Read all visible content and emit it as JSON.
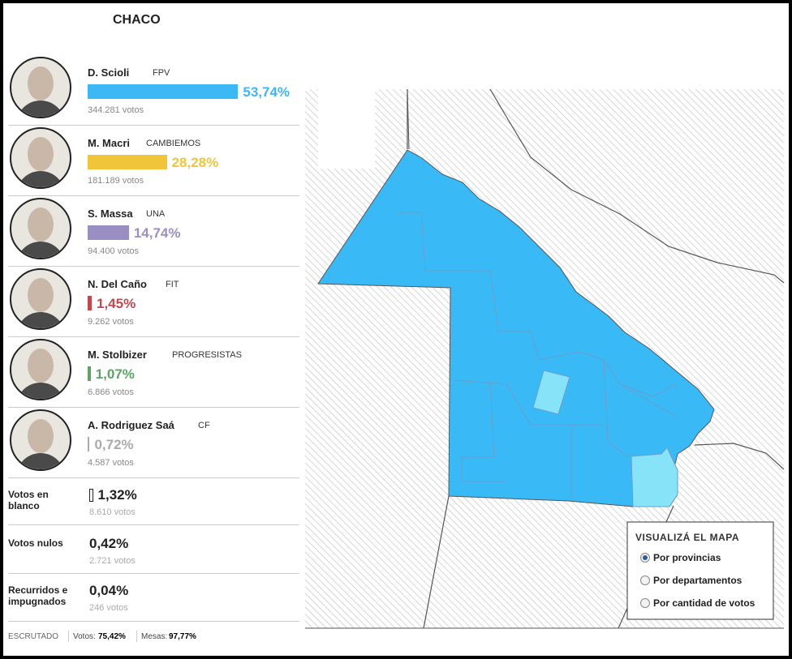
{
  "header": {
    "title": "CHACO"
  },
  "candidates": [
    {
      "name": "D. Scioli",
      "party": "FPV",
      "percent": 53.74,
      "percent_label": "53,74%",
      "votes": "344.281 votos",
      "color": "#3cb8f6"
    },
    {
      "name": "M. Macri",
      "party": "CAMBIEMOS",
      "percent": 28.28,
      "percent_label": "28,28%",
      "votes": "181.189 votos",
      "color": "#f0c53a"
    },
    {
      "name": "S. Massa",
      "party": "UNA",
      "percent": 14.74,
      "percent_label": "14,74%",
      "votes": "94.400 votos",
      "color": "#9a8fc2"
    },
    {
      "name": "N. Del Caño",
      "party": "FIT",
      "percent": 1.45,
      "percent_label": "1,45%",
      "votes": "9.262 votos",
      "color": "#c4474c"
    },
    {
      "name": "M. Stolbizer",
      "party": "PROGRESISTAS",
      "percent": 1.07,
      "percent_label": "1,07%",
      "votes": "6.866 votos",
      "color": "#5aa465"
    },
    {
      "name": "A. Rodriguez Saá",
      "party": "CF",
      "percent": 0.72,
      "percent_label": "0,72%",
      "votes": "4.587 votos",
      "color": "#aaaaaa"
    }
  ],
  "other_votes": [
    {
      "name": "Votos en blanco",
      "percent": 1.32,
      "percent_label": "1,32%",
      "votes": "8.610 votos",
      "color": "#ffffff"
    },
    {
      "name": "Votos nulos",
      "percent": 0.42,
      "percent_label": "0,42%",
      "votes": "2.721 votos"
    },
    {
      "name": "Recurridos e impugnados",
      "percent": 0.04,
      "percent_label": "0,04%",
      "votes": "246 votos"
    }
  ],
  "footer": {
    "label": "ESCRUTADO",
    "votes_label": "Votos:",
    "votes_value": "75,42%",
    "tables_label": "Mesas:",
    "tables_value": "97,77%"
  },
  "map_legend": {
    "title": "VISUALIZÁ EL MAPA",
    "options": [
      "Por provincias",
      "Por departamentos",
      "Por cantidad de votos"
    ],
    "selected": 0
  }
}
